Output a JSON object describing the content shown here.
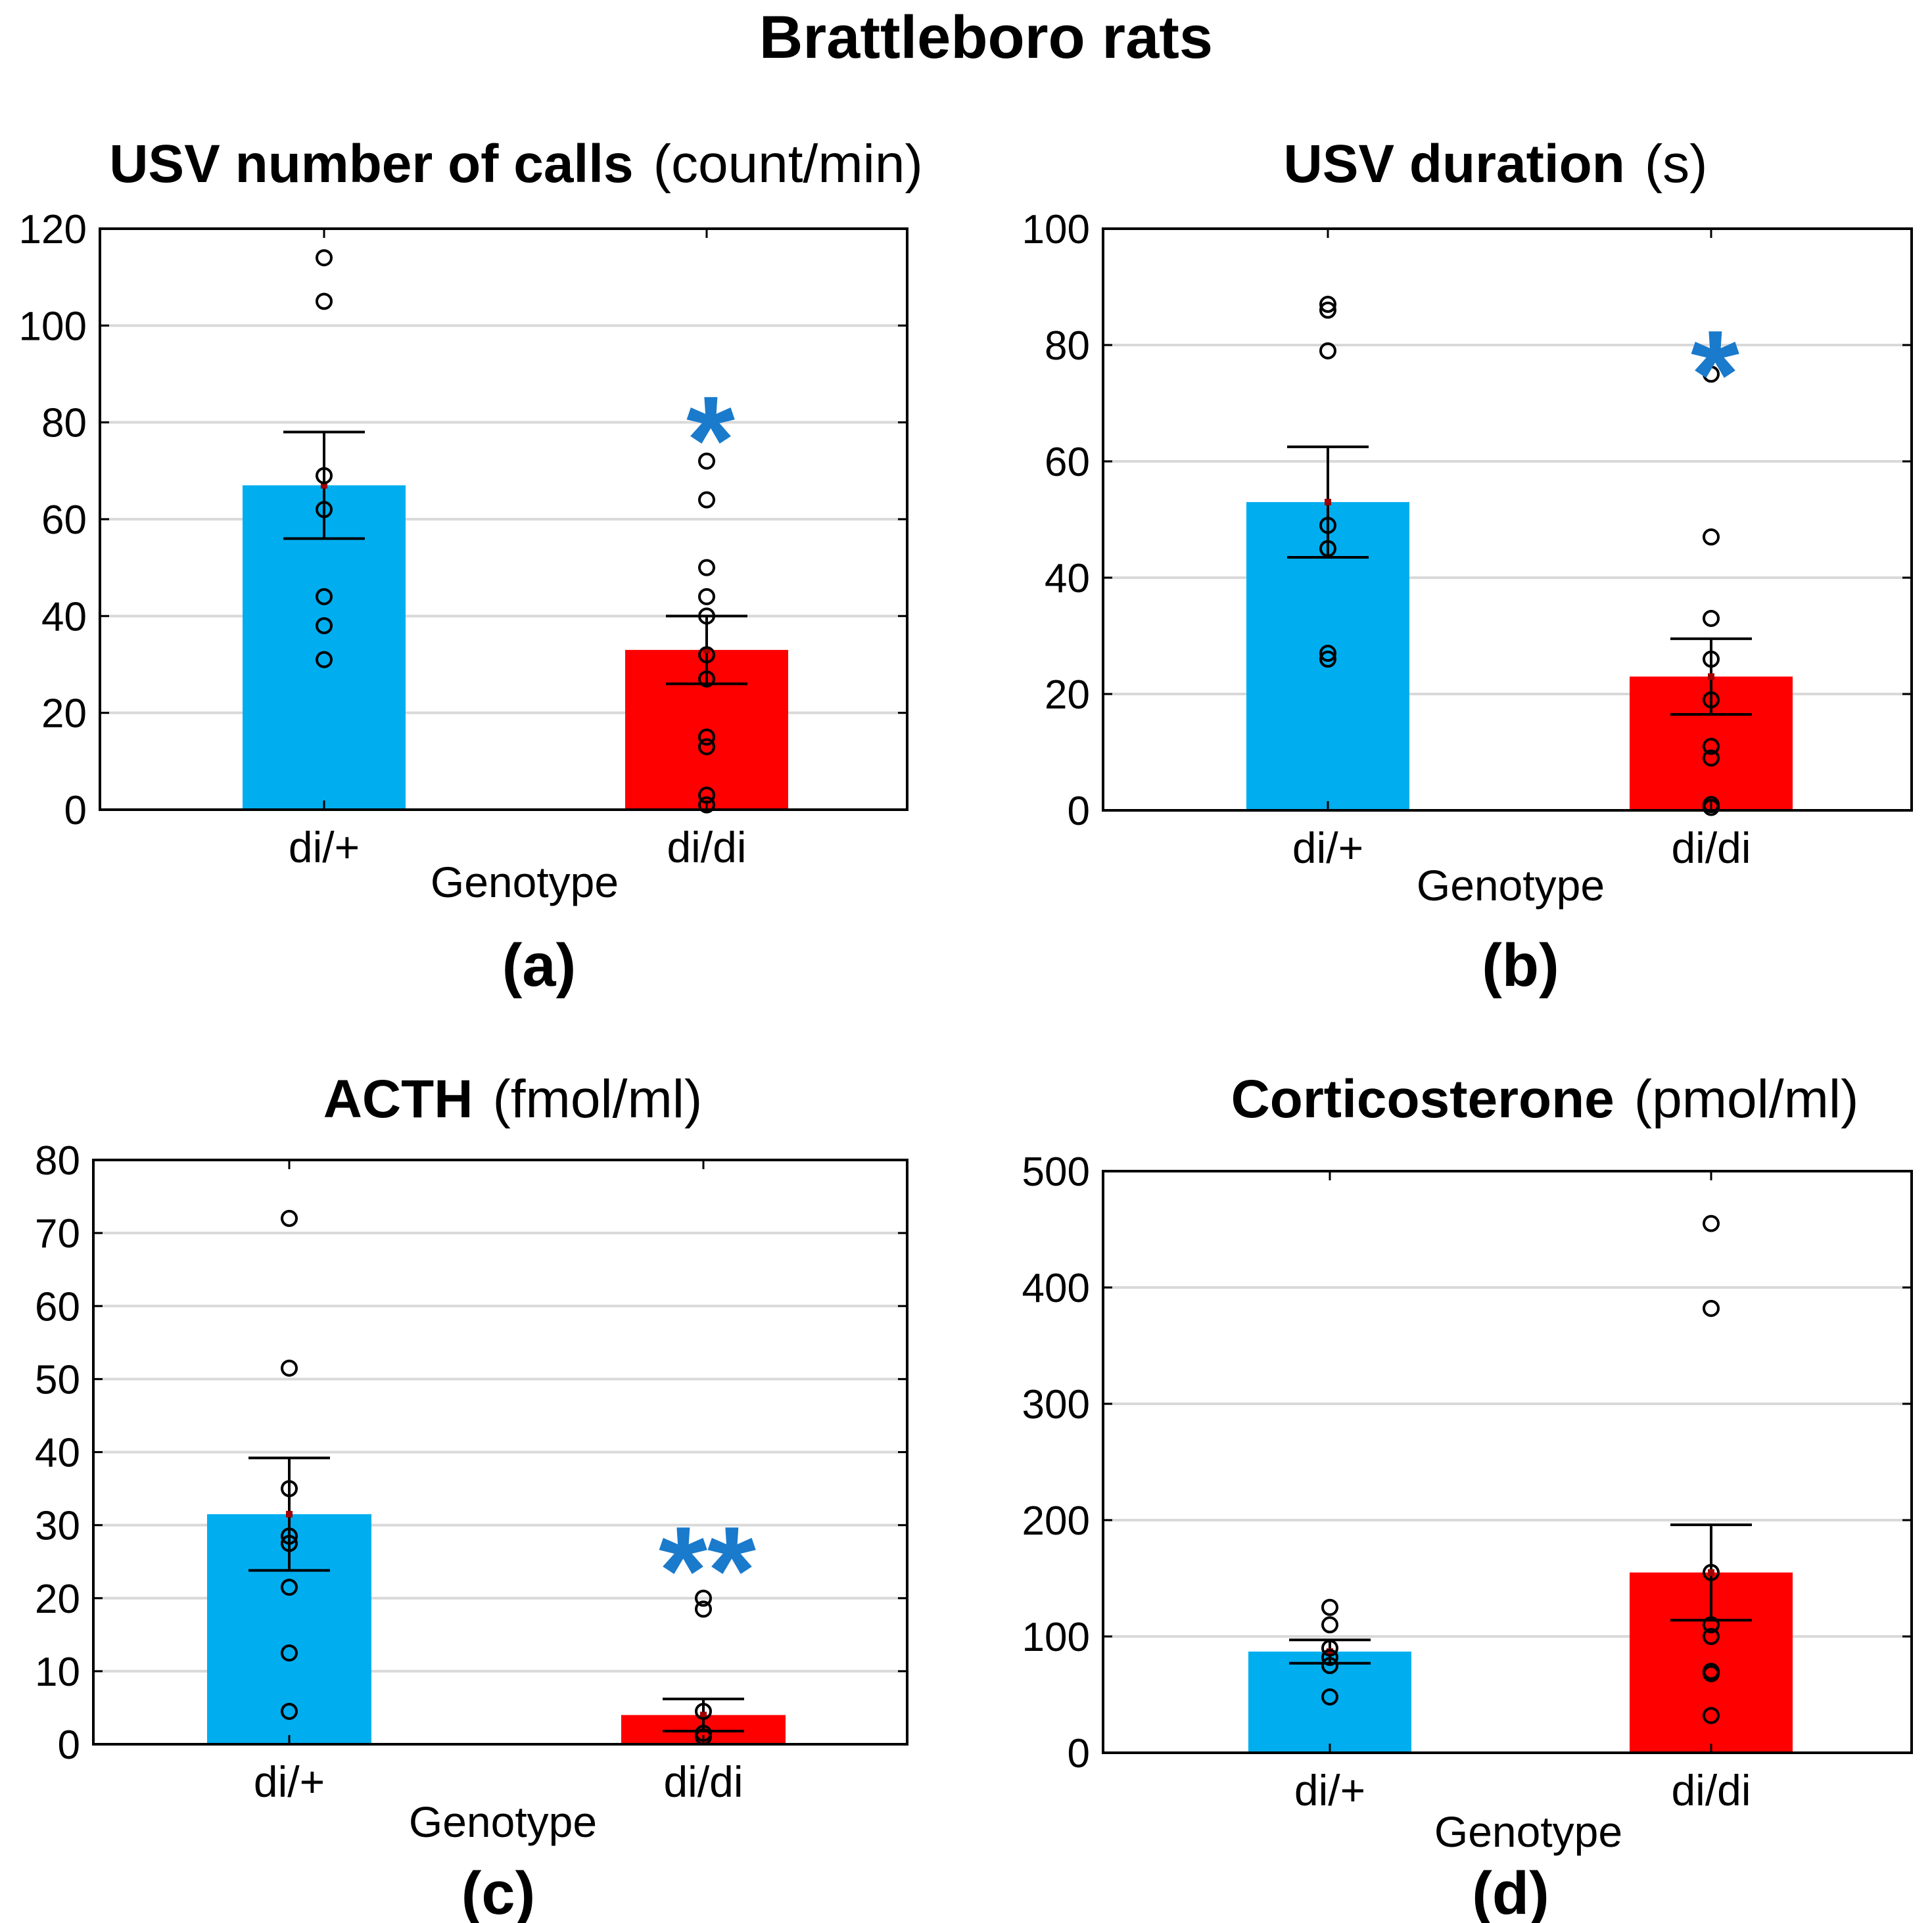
{
  "figure_title": "Brattleboro rats",
  "colors": {
    "di_plus": "#00AEEF",
    "di_di": "#FF0000",
    "significance": "#1A7ACB",
    "grid": "#D9D9D9"
  },
  "chart_data": [
    {
      "type": "bar",
      "panel": "(a)",
      "title": "USV number of calls",
      "unit": "(count/min)",
      "xlabel": "Genotype",
      "categories": [
        "di/+",
        "di/di"
      ],
      "values": [
        67,
        33
      ],
      "sem": [
        11,
        7
      ],
      "points": [
        [
          114,
          105,
          69,
          62,
          44,
          38,
          31
        ],
        [
          72,
          64,
          50,
          44,
          40,
          32,
          27,
          15,
          13,
          3,
          1
        ]
      ],
      "significance": [
        "",
        "*"
      ],
      "ylim": [
        0,
        120
      ],
      "yticks": [
        "0",
        "20",
        "40",
        "60",
        "80",
        "100",
        "120"
      ],
      "grid": true
    },
    {
      "type": "bar",
      "panel": "(b)",
      "title": "USV duration",
      "unit": "(s)",
      "xlabel": "Genotype",
      "categories": [
        "di/+",
        "di/di"
      ],
      "values": [
        53,
        23
      ],
      "sem": [
        9.5,
        6.5
      ],
      "points": [
        [
          87,
          86,
          79,
          49,
          45,
          27,
          26
        ],
        [
          75,
          47,
          33,
          26,
          19,
          11,
          9,
          1,
          0.5
        ]
      ],
      "significance": [
        "",
        "*"
      ],
      "ylim": [
        0,
        100
      ],
      "yticks": [
        "0",
        "20",
        "40",
        "60",
        "80",
        "100"
      ],
      "grid": true
    },
    {
      "type": "bar",
      "panel": "(c)",
      "title": "ACTH",
      "unit": "(fmol/ml)",
      "xlabel": "Genotype",
      "categories": [
        "di/+",
        "di/di"
      ],
      "values": [
        31.5,
        4
      ],
      "sem": [
        7.7,
        2.2
      ],
      "points": [
        [
          72,
          51.5,
          35,
          28.5,
          27.5,
          21.5,
          12.5,
          4.5
        ],
        [
          20,
          18.5,
          4.5,
          1.5,
          1
        ]
      ],
      "significance": [
        "",
        "**"
      ],
      "ylim": [
        0,
        80
      ],
      "yticks": [
        "0",
        "10",
        "20",
        "30",
        "40",
        "50",
        "60",
        "70",
        "80"
      ],
      "grid": true
    },
    {
      "type": "bar",
      "panel": "(d)",
      "title": "Corticosterone",
      "unit": "(pmol/ml)",
      "xlabel": "Genotype",
      "categories": [
        "di/+",
        "di/di"
      ],
      "values": [
        87,
        155
      ],
      "sem": [
        10,
        41
      ],
      "points": [
        [
          125,
          110,
          90,
          82,
          75,
          48
        ],
        [
          455,
          382,
          155,
          110,
          100,
          70,
          68,
          32
        ]
      ],
      "significance": [
        "",
        ""
      ],
      "ylim": [
        0,
        500
      ],
      "yticks": [
        "0",
        "100",
        "200",
        "300",
        "400",
        "500"
      ],
      "grid": true
    }
  ]
}
